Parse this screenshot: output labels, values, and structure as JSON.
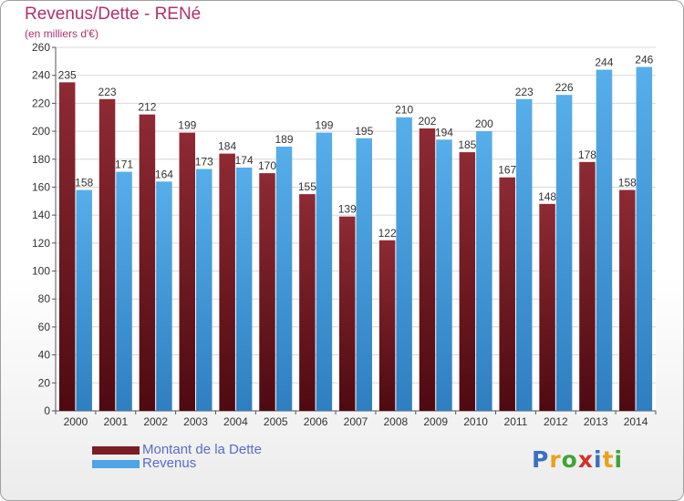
{
  "title": "Revenus/Dette - RENé",
  "subtitle": "(en milliers d'€)",
  "colors": {
    "dette": "#7a1c24",
    "revenus": "#4da4e6"
  },
  "legend": {
    "dette_label": "Montant de la Dette",
    "revenus_label": "Revenus"
  },
  "logo": {
    "letters": [
      "P",
      "r",
      "o",
      "x",
      "i",
      "t",
      "i"
    ],
    "colors": [
      "#3b6fc4",
      "#e8a21c",
      "#3ea535",
      "#d6302a",
      "#3b6fc4",
      "#e8a21c",
      "#3ea535"
    ]
  },
  "chart_data": {
    "type": "bar",
    "categories": [
      "2000",
      "2001",
      "2002",
      "2003",
      "2004",
      "2005",
      "2006",
      "2007",
      "2008",
      "2009",
      "2010",
      "2011",
      "2012",
      "2013",
      "2014"
    ],
    "series": [
      {
        "name": "Montant de la Dette",
        "values": [
          235,
          223,
          212,
          199,
          184,
          170,
          155,
          139,
          122,
          202,
          185,
          167,
          148,
          178,
          158
        ]
      },
      {
        "name": "Revenus",
        "values": [
          158,
          171,
          164,
          173,
          174,
          189,
          199,
          195,
          210,
          194,
          200,
          223,
          226,
          244,
          246
        ]
      }
    ],
    "ylim": [
      0,
      260
    ],
    "ytick_step": 20,
    "grid": true
  }
}
